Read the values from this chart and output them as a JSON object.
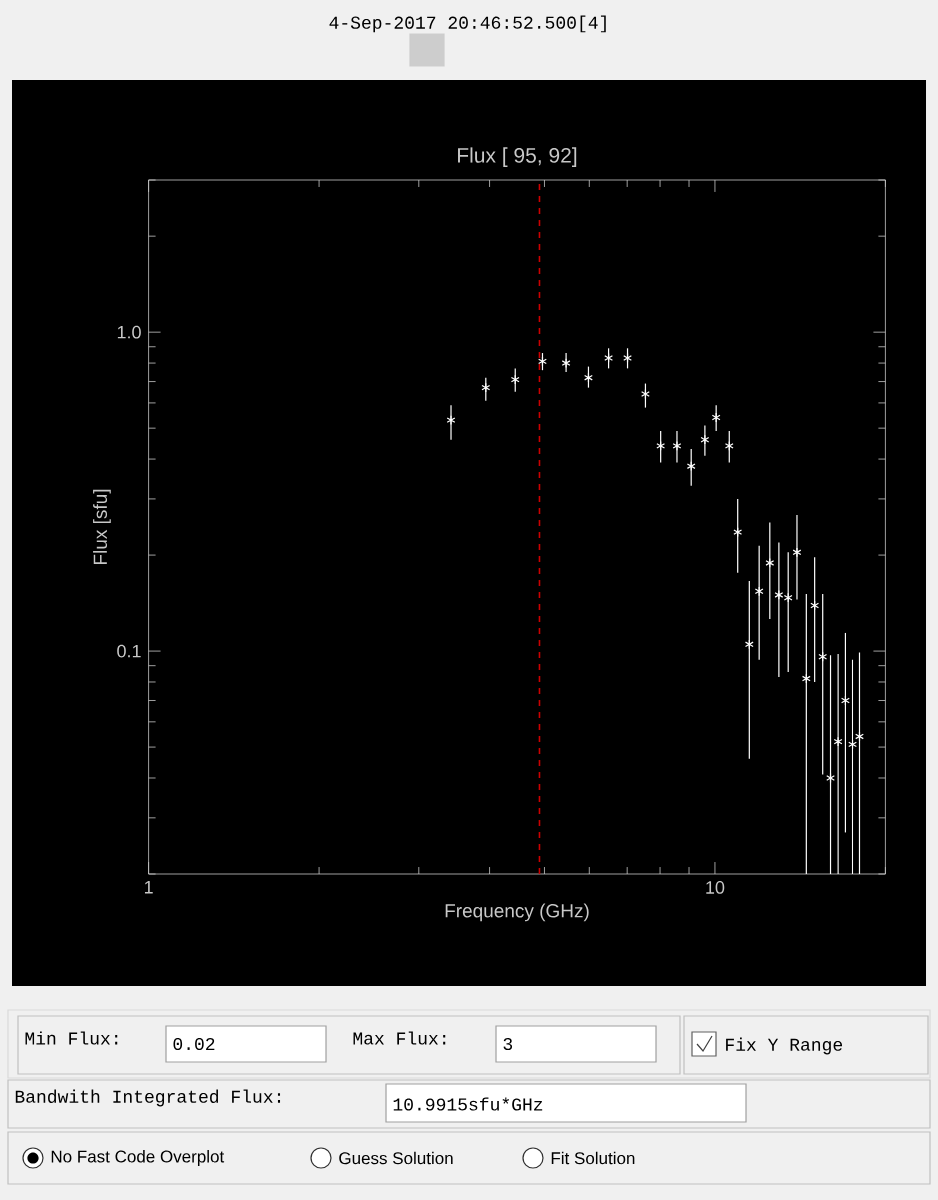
{
  "chart_data": {
    "type": "scatter",
    "title": "Flux [ 95, 92]",
    "xlabel": "Frequency (GHz)",
    "ylabel": "Flux [sfu]",
    "annotations": [
      "4-Sep-2017 20:46:52.500[4]",
      "Min Flux:",
      "0.02",
      "Max Flux:",
      "3",
      "Fix Y Range",
      "Bandwith Integrated Flux:",
      "10.9915sfu*GHz",
      "No Fast Code Overplot",
      "Guess Solution",
      "Fit Solution"
    ],
    "x": [
      3.42,
      3.94,
      4.44,
      4.96,
      5.46,
      5.98,
      6.49,
      7.01,
      7.54,
      8.02,
      8.57,
      9.08,
      9.6,
      10.05,
      10.6,
      10.97,
      11.5,
      11.97,
      12.5,
      12.97,
      13.47,
      13.96,
      14.5,
      15.0,
      15.5,
      16.0,
      16.5,
      17.0,
      17.5,
      18.0
    ],
    "series": [
      {
        "color": "#ffffff",
        "values": [
          0.53,
          0.67,
          0.71,
          0.81,
          0.8,
          0.72,
          0.83,
          0.83,
          0.64,
          0.44,
          0.44,
          0.38,
          0.46,
          0.54,
          0.44,
          0.236,
          0.105,
          0.154,
          0.189,
          0.15,
          0.147,
          0.204,
          0.082,
          0.139,
          0.096,
          0.04,
          0.052,
          0.07,
          0.051,
          0.054
        ],
        "errors": [
          [
            0.46,
            0.59
          ],
          [
            0.61,
            0.72
          ],
          [
            0.65,
            0.77
          ],
          [
            0.76,
            0.86
          ],
          [
            0.75,
            0.86
          ],
          [
            0.67,
            0.78
          ],
          [
            0.77,
            0.89
          ],
          [
            0.77,
            0.89
          ],
          [
            0.58,
            0.69
          ],
          [
            0.39,
            0.49
          ],
          [
            0.39,
            0.49
          ],
          [
            0.33,
            0.43
          ],
          [
            0.41,
            0.51
          ],
          [
            0.49,
            0.59
          ],
          [
            0.39,
            0.49
          ],
          [
            0.176,
            0.3
          ],
          [
            0.046,
            0.166
          ],
          [
            0.094,
            0.214
          ],
          [
            0.126,
            0.253
          ],
          [
            0.083,
            0.219
          ],
          [
            0.086,
            0.204
          ],
          [
            0.145,
            0.267
          ],
          [
            0.02,
            0.151
          ],
          [
            0.08,
            0.197
          ],
          [
            0.041,
            0.151
          ],
          [
            0.02,
            0.097
          ],
          [
            0.02,
            0.098
          ],
          [
            0.027,
            0.114
          ],
          [
            0.02,
            0.094
          ],
          [
            0.02,
            0.099
          ]
        ]
      }
    ],
    "log": "xy",
    "xlim": [
      1,
      20
    ],
    "ylim": [
      0.02,
      3
    ],
    "xticks": [
      1,
      {
        "value": 2,
        "label": null
      },
      {
        "value": 3,
        "label": null
      },
      {
        "value": 4,
        "label": null
      },
      {
        "value": 5,
        "label": null
      },
      {
        "value": 6,
        "label": null
      },
      {
        "value": 7,
        "label": null
      },
      {
        "value": 8,
        "label": null
      },
      {
        "value": 9,
        "label": null
      },
      10,
      {
        "value": 20,
        "label": null
      }
    ],
    "yticks": [
      {
        "value": 0.02,
        "label": null
      },
      {
        "value": 0.03,
        "label": null
      },
      {
        "value": 0.04,
        "label": null
      },
      {
        "value": 0.05,
        "label": null
      },
      {
        "value": 0.06,
        "label": null
      },
      {
        "value": 0.07,
        "label": null
      },
      {
        "value": 0.08,
        "label": null
      },
      {
        "value": 0.09,
        "label": null
      },
      0.1,
      {
        "value": 0.2,
        "label": null
      },
      {
        "value": 0.3,
        "label": null
      },
      {
        "value": 0.4,
        "label": null
      },
      {
        "value": 0.5,
        "label": null
      },
      {
        "value": 0.6,
        "label": null
      },
      {
        "value": 0.7,
        "label": null
      },
      {
        "value": 0.8,
        "label": null
      },
      {
        "value": 0.9,
        "label": null
      },
      {
        "value": 1,
        "label": "1.0"
      },
      {
        "value": 2,
        "label": null
      },
      {
        "value": 3,
        "label": null
      }
    ],
    "ref_lines": [
      {
        "axis": "x",
        "value": 4.9,
        "color": "#cc0000",
        "line_style": "dashed"
      }
    ],
    "marker": "cross"
  }
}
